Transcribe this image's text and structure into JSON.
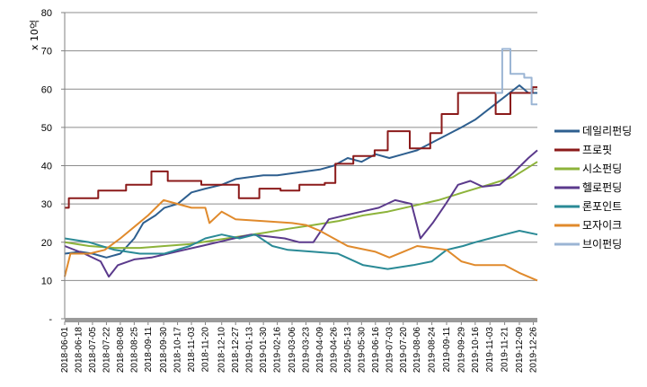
{
  "chart_data": {
    "type": "line",
    "ylabel": "x 10억",
    "ylim": [
      0,
      80
    ],
    "ytick_labels": [
      "-",
      "10",
      "20",
      "30",
      "40",
      "50",
      "60",
      "70",
      "80"
    ],
    "ytick_values": [
      0,
      10,
      20,
      30,
      40,
      50,
      60,
      70,
      80
    ],
    "grid": true,
    "legend_position": "right",
    "x_start": "2018-06-01",
    "x_end": "2019-12-31",
    "x_ticks": [
      "2018-06-01",
      "2018-06-18",
      "2018-07-05",
      "2018-07-22",
      "2018-08-08",
      "2018-08-25",
      "2018-09-11",
      "2018-09-30",
      "2018-10-17",
      "2018-11-03",
      "2018-11-20",
      "2018-12-10",
      "2018-12-27",
      "2019-01-13",
      "2019-01-30",
      "2019-02-16",
      "2019-03-06",
      "2019-03-23",
      "2019-04-09",
      "2019-04-26",
      "2019-05-13",
      "2019-05-30",
      "2019-06-16",
      "2019-07-03",
      "2019-07-20",
      "2019-08-06",
      "2019-08-24",
      "2019-09-11",
      "2019-09-29",
      "2019-10-16",
      "2019-11-03",
      "2019-11-21",
      "2019-12-09",
      "2019-12-26"
    ],
    "series": [
      {
        "name": "데일리펀딩",
        "color": "#2E5F8F",
        "step": false,
        "points": [
          [
            "2018-06-01",
            17
          ],
          [
            "2018-06-20",
            17.5
          ],
          [
            "2018-07-05",
            17
          ],
          [
            "2018-07-22",
            16
          ],
          [
            "2018-08-08",
            17
          ],
          [
            "2018-08-25",
            21
          ],
          [
            "2018-09-05",
            25
          ],
          [
            "2018-09-20",
            27
          ],
          [
            "2018-10-01",
            29
          ],
          [
            "2018-10-17",
            30
          ],
          [
            "2018-11-03",
            33
          ],
          [
            "2018-11-20",
            34
          ],
          [
            "2018-12-10",
            35
          ],
          [
            "2018-12-27",
            36.5
          ],
          [
            "2019-01-13",
            37
          ],
          [
            "2019-01-30",
            37.5
          ],
          [
            "2019-02-16",
            37.5
          ],
          [
            "2019-03-06",
            38
          ],
          [
            "2019-03-23",
            38.5
          ],
          [
            "2019-04-09",
            39
          ],
          [
            "2019-04-26",
            40
          ],
          [
            "2019-05-13",
            42
          ],
          [
            "2019-05-30",
            41
          ],
          [
            "2019-06-16",
            43
          ],
          [
            "2019-07-03",
            42
          ],
          [
            "2019-07-20",
            43
          ],
          [
            "2019-08-06",
            44
          ],
          [
            "2019-08-24",
            46
          ],
          [
            "2019-09-11",
            48
          ],
          [
            "2019-09-29",
            50
          ],
          [
            "2019-10-16",
            52
          ],
          [
            "2019-11-03",
            55
          ],
          [
            "2019-11-21",
            58
          ],
          [
            "2019-12-09",
            61
          ],
          [
            "2019-12-20",
            59
          ],
          [
            "2019-12-31",
            59
          ]
        ]
      },
      {
        "name": "프로핏",
        "color": "#8B1A1A",
        "step": true,
        "points": [
          [
            "2018-06-01",
            29
          ],
          [
            "2018-06-06",
            31.5
          ],
          [
            "2018-07-12",
            33.5
          ],
          [
            "2018-08-15",
            35
          ],
          [
            "2018-09-15",
            38.5
          ],
          [
            "2018-10-05",
            36
          ],
          [
            "2018-11-15",
            35
          ],
          [
            "2018-12-10",
            35
          ],
          [
            "2018-12-31",
            31.5
          ],
          [
            "2019-01-25",
            34
          ],
          [
            "2019-02-20",
            33.5
          ],
          [
            "2019-03-15",
            35
          ],
          [
            "2019-04-15",
            35.5
          ],
          [
            "2019-04-28",
            40.5
          ],
          [
            "2019-05-20",
            42.5
          ],
          [
            "2019-06-15",
            44
          ],
          [
            "2019-07-01",
            49
          ],
          [
            "2019-07-28",
            44.5
          ],
          [
            "2019-08-22",
            48.5
          ],
          [
            "2019-09-05",
            53.5
          ],
          [
            "2019-09-25",
            59
          ],
          [
            "2019-11-10",
            53.5
          ],
          [
            "2019-11-28",
            59
          ],
          [
            "2019-12-25",
            60.5
          ],
          [
            "2019-12-31",
            60.5
          ]
        ]
      },
      {
        "name": "시소펀딩",
        "color": "#8DB33A",
        "step": false,
        "points": [
          [
            "2018-06-01",
            20
          ],
          [
            "2018-07-01",
            19
          ],
          [
            "2018-08-01",
            18.5
          ],
          [
            "2018-09-01",
            18.5
          ],
          [
            "2018-10-01",
            19
          ],
          [
            "2018-11-01",
            19.5
          ],
          [
            "2018-12-01",
            20.5
          ],
          [
            "2019-01-01",
            21.5
          ],
          [
            "2019-02-01",
            22.5
          ],
          [
            "2019-03-01",
            23.5
          ],
          [
            "2019-04-01",
            24.5
          ],
          [
            "2019-05-01",
            25.5
          ],
          [
            "2019-06-01",
            27
          ],
          [
            "2019-07-01",
            28
          ],
          [
            "2019-08-01",
            29.5
          ],
          [
            "2019-09-01",
            31
          ],
          [
            "2019-10-01",
            33
          ],
          [
            "2019-11-01",
            35
          ],
          [
            "2019-12-01",
            37
          ],
          [
            "2019-12-31",
            41
          ]
        ]
      },
      {
        "name": "헬로펀딩",
        "color": "#5B3A8C",
        "step": false,
        "points": [
          [
            "2018-06-01",
            19
          ],
          [
            "2018-06-25",
            17
          ],
          [
            "2018-07-15",
            15
          ],
          [
            "2018-07-25",
            11
          ],
          [
            "2018-08-05",
            14
          ],
          [
            "2018-08-25",
            15.5
          ],
          [
            "2018-09-15",
            16
          ],
          [
            "2018-10-05",
            17
          ],
          [
            "2018-10-25",
            18
          ],
          [
            "2018-11-15",
            19
          ],
          [
            "2018-12-05",
            20
          ],
          [
            "2018-12-25",
            21
          ],
          [
            "2019-01-15",
            22
          ],
          [
            "2019-02-05",
            21.5
          ],
          [
            "2019-02-25",
            21
          ],
          [
            "2019-03-15",
            20
          ],
          [
            "2019-04-01",
            20
          ],
          [
            "2019-04-20",
            26
          ],
          [
            "2019-05-10",
            27
          ],
          [
            "2019-05-30",
            28
          ],
          [
            "2019-06-20",
            29
          ],
          [
            "2019-07-10",
            31
          ],
          [
            "2019-07-30",
            30
          ],
          [
            "2019-08-10",
            21
          ],
          [
            "2019-08-25",
            25
          ],
          [
            "2019-09-10",
            30
          ],
          [
            "2019-09-25",
            35
          ],
          [
            "2019-10-10",
            36
          ],
          [
            "2019-10-25",
            34.5
          ],
          [
            "2019-11-15",
            35
          ],
          [
            "2019-12-01",
            38
          ],
          [
            "2019-12-20",
            42
          ],
          [
            "2019-12-31",
            44
          ]
        ]
      },
      {
        "name": "론포인트",
        "color": "#2A8A96",
        "step": false,
        "points": [
          [
            "2018-06-01",
            21
          ],
          [
            "2018-07-01",
            20
          ],
          [
            "2018-08-01",
            18
          ],
          [
            "2018-09-01",
            17
          ],
          [
            "2018-10-01",
            17
          ],
          [
            "2018-11-01",
            19
          ],
          [
            "2018-11-20",
            21
          ],
          [
            "2018-12-10",
            22
          ],
          [
            "2019-01-01",
            21
          ],
          [
            "2019-01-20",
            22
          ],
          [
            "2019-02-10",
            19
          ],
          [
            "2019-03-01",
            18
          ],
          [
            "2019-04-01",
            17.5
          ],
          [
            "2019-05-01",
            17
          ],
          [
            "2019-06-01",
            14
          ],
          [
            "2019-07-01",
            13
          ],
          [
            "2019-08-01",
            14
          ],
          [
            "2019-08-24",
            15
          ],
          [
            "2019-09-11",
            18
          ],
          [
            "2019-10-01",
            19
          ],
          [
            "2019-10-16",
            20
          ],
          [
            "2019-11-03",
            21
          ],
          [
            "2019-11-21",
            22
          ],
          [
            "2019-12-09",
            23
          ],
          [
            "2019-12-31",
            22
          ]
        ]
      },
      {
        "name": "모자이크",
        "color": "#E08A2C",
        "step": false,
        "points": [
          [
            "2018-06-01",
            11
          ],
          [
            "2018-06-08",
            17
          ],
          [
            "2018-07-01",
            17
          ],
          [
            "2018-07-20",
            18
          ],
          [
            "2018-08-08",
            21
          ],
          [
            "2018-08-25",
            24
          ],
          [
            "2018-09-11",
            27
          ],
          [
            "2018-09-30",
            31
          ],
          [
            "2018-10-17",
            30
          ],
          [
            "2018-11-03",
            29
          ],
          [
            "2018-11-20",
            29
          ],
          [
            "2018-11-25",
            25
          ],
          [
            "2018-12-10",
            28
          ],
          [
            "2018-12-27",
            26
          ],
          [
            "2019-01-30",
            25.5
          ],
          [
            "2019-03-06",
            25
          ],
          [
            "2019-03-23",
            24.5
          ],
          [
            "2019-04-09",
            23
          ],
          [
            "2019-04-26",
            21
          ],
          [
            "2019-05-13",
            19
          ],
          [
            "2019-06-16",
            17.5
          ],
          [
            "2019-07-03",
            16
          ],
          [
            "2019-07-20",
            17.5
          ],
          [
            "2019-08-06",
            19
          ],
          [
            "2019-08-24",
            18.5
          ],
          [
            "2019-09-11",
            18
          ],
          [
            "2019-09-29",
            15
          ],
          [
            "2019-10-16",
            14
          ],
          [
            "2019-11-21",
            14
          ],
          [
            "2019-12-09",
            12
          ],
          [
            "2019-12-31",
            10
          ]
        ]
      },
      {
        "name": "브이펀딩",
        "color": "#9BB5D4",
        "step": true,
        "points": [
          [
            "2019-11-10",
            59
          ],
          [
            "2019-11-18",
            70.5
          ],
          [
            "2019-11-28",
            64
          ],
          [
            "2019-12-15",
            63
          ],
          [
            "2019-12-24",
            56
          ],
          [
            "2019-12-31",
            56
          ]
        ]
      }
    ]
  }
}
